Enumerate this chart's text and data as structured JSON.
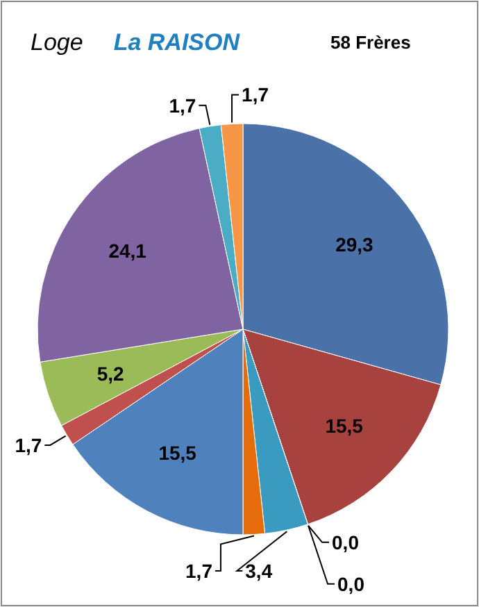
{
  "chart_data": {
    "type": "pie",
    "title": "Loge",
    "subtitle": "La RAISON",
    "annotations": [
      "58 Frères"
    ],
    "categories": [
      null,
      null,
      null,
      null,
      null,
      null,
      null,
      null,
      null,
      null,
      null,
      null
    ],
    "values": [
      29.3,
      15.5,
      0.0,
      0.0,
      3.4,
      1.7,
      15.5,
      1.7,
      5.2,
      24.1,
      1.7,
      1.7
    ],
    "colors": [
      "#4a72a8",
      "#a8423f",
      "#7f9a48",
      "#6a5090",
      "#3a9ac0",
      "#e46c0a",
      "#4f81bd",
      "#c0504d",
      "#9bbb59",
      "#8064a2",
      "#4bacc6",
      "#f79646"
    ],
    "value_labels": [
      "29,3",
      "15,5",
      "0,0",
      "0,0",
      "3,4",
      "1,7",
      "15,5",
      "1,7",
      "5,2",
      "24,1",
      "1,7",
      "1,7"
    ]
  }
}
